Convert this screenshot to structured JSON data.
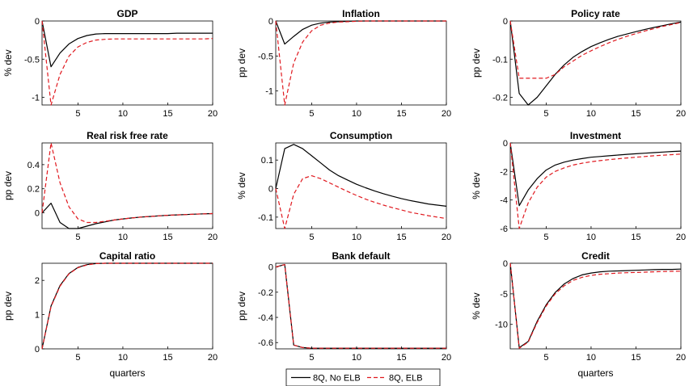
{
  "chart_data": [
    {
      "type": "line",
      "title": "GDP",
      "ylabel": "% dev",
      "xlabel": "",
      "xlim": [
        1,
        20
      ],
      "ylim": [
        -1.1,
        0
      ],
      "yticks": [
        0,
        -0.5,
        -1
      ],
      "ytick_labels": [
        "0",
        "-0.5",
        "-1"
      ],
      "xticks": [
        5,
        10,
        15,
        20
      ],
      "xtick_labels": [
        "5",
        "10",
        "15",
        "20"
      ],
      "x": [
        1,
        2,
        3,
        4,
        5,
        6,
        7,
        8,
        9,
        10,
        11,
        12,
        13,
        14,
        15,
        16,
        17,
        18,
        19,
        20
      ],
      "series": [
        {
          "values": [
            0,
            -0.6,
            -0.42,
            -0.3,
            -0.23,
            -0.19,
            -0.17,
            -0.165,
            -0.165,
            -0.165,
            -0.165,
            -0.165,
            -0.165,
            -0.165,
            -0.165,
            -0.16,
            -0.16,
            -0.16,
            -0.16,
            -0.16
          ],
          "color": "#000000",
          "dash": "solid"
        },
        {
          "values": [
            0,
            -1.15,
            -0.7,
            -0.46,
            -0.34,
            -0.28,
            -0.25,
            -0.24,
            -0.235,
            -0.235,
            -0.235,
            -0.235,
            -0.235,
            -0.235,
            -0.235,
            -0.235,
            -0.235,
            -0.235,
            -0.235,
            -0.23
          ],
          "color": "#e0191f",
          "dash": "dashed"
        }
      ]
    },
    {
      "type": "line",
      "title": "Inflation",
      "ylabel": "pp dev",
      "xlabel": "",
      "xlim": [
        1,
        20
      ],
      "ylim": [
        -1.2,
        0
      ],
      "yticks": [
        0,
        -0.5,
        -1
      ],
      "ytick_labels": [
        "0",
        "-0.5",
        "-1"
      ],
      "xticks": [
        5,
        10,
        15,
        20
      ],
      "xtick_labels": [
        "5",
        "10",
        "15",
        "20"
      ],
      "x": [
        1,
        2,
        3,
        4,
        5,
        6,
        7,
        8,
        9,
        10,
        11,
        12,
        13,
        14,
        15,
        16,
        17,
        18,
        19,
        20
      ],
      "series": [
        {
          "values": [
            0,
            -0.33,
            -0.22,
            -0.12,
            -0.06,
            -0.03,
            -0.015,
            -0.01,
            -0.005,
            0,
            0,
            0,
            0,
            0,
            0,
            0,
            0,
            0,
            0,
            0
          ],
          "color": "#000000",
          "dash": "solid"
        },
        {
          "values": [
            0,
            -1.22,
            -0.6,
            -0.3,
            -0.14,
            -0.06,
            -0.03,
            -0.015,
            -0.01,
            -0.005,
            0,
            0,
            0,
            0,
            0,
            0,
            0,
            0,
            0,
            0
          ],
          "color": "#e0191f",
          "dash": "dashed"
        }
      ]
    },
    {
      "type": "line",
      "title": "Policy rate",
      "ylabel": "pp dev",
      "xlabel": "",
      "xlim": [
        1,
        20
      ],
      "ylim": [
        -0.22,
        0
      ],
      "yticks": [
        0,
        -0.1,
        -0.2
      ],
      "ytick_labels": [
        "0",
        "-0.1",
        "-0.2"
      ],
      "xticks": [
        5,
        10,
        15,
        20
      ],
      "xtick_labels": [
        "5",
        "10",
        "15",
        "20"
      ],
      "x": [
        1,
        2,
        3,
        4,
        5,
        6,
        7,
        8,
        9,
        10,
        11,
        12,
        13,
        14,
        15,
        16,
        17,
        18,
        19,
        20
      ],
      "series": [
        {
          "values": [
            0,
            -0.19,
            -0.22,
            -0.2,
            -0.17,
            -0.14,
            -0.115,
            -0.095,
            -0.08,
            -0.067,
            -0.057,
            -0.048,
            -0.04,
            -0.034,
            -0.028,
            -0.022,
            -0.017,
            -0.012,
            -0.007,
            -0.003
          ],
          "color": "#000000",
          "dash": "solid"
        },
        {
          "values": [
            0,
            -0.15,
            -0.15,
            -0.15,
            -0.15,
            -0.14,
            -0.12,
            -0.105,
            -0.09,
            -0.078,
            -0.067,
            -0.057,
            -0.048,
            -0.04,
            -0.033,
            -0.026,
            -0.02,
            -0.014,
            -0.009,
            -0.004
          ],
          "color": "#e0191f",
          "dash": "dashed"
        }
      ]
    },
    {
      "type": "line",
      "title": "Real risk free rate",
      "ylabel": "pp dev",
      "xlabel": "",
      "xlim": [
        1,
        20
      ],
      "ylim": [
        -0.13,
        0.58
      ],
      "yticks": [
        0.4,
        0.2,
        0
      ],
      "ytick_labels": [
        "0.4",
        "0.2",
        "0"
      ],
      "xticks": [
        5,
        10,
        15,
        20
      ],
      "xtick_labels": [
        "5",
        "10",
        "15",
        "20"
      ],
      "x": [
        1,
        2,
        3,
        4,
        5,
        6,
        7,
        8,
        9,
        10,
        11,
        12,
        13,
        14,
        15,
        16,
        17,
        18,
        19,
        20
      ],
      "series": [
        {
          "values": [
            0,
            0.08,
            -0.08,
            -0.13,
            -0.13,
            -0.11,
            -0.09,
            -0.075,
            -0.06,
            -0.05,
            -0.042,
            -0.035,
            -0.03,
            -0.025,
            -0.02,
            -0.017,
            -0.014,
            -0.011,
            -0.008,
            -0.006
          ],
          "color": "#000000",
          "dash": "solid"
        },
        {
          "values": [
            0,
            0.58,
            0.25,
            0.05,
            -0.05,
            -0.08,
            -0.08,
            -0.07,
            -0.06,
            -0.05,
            -0.042,
            -0.035,
            -0.03,
            -0.025,
            -0.02,
            -0.017,
            -0.014,
            -0.011,
            -0.008,
            -0.006
          ],
          "color": "#e0191f",
          "dash": "dashed"
        }
      ]
    },
    {
      "type": "line",
      "title": "Consumption",
      "ylabel": "% dev",
      "xlabel": "",
      "xlim": [
        1,
        20
      ],
      "ylim": [
        -0.14,
        0.16
      ],
      "yticks": [
        0.1,
        0,
        -0.1
      ],
      "ytick_labels": [
        "0.1",
        "0",
        "-0.1"
      ],
      "xticks": [
        5,
        10,
        15,
        20
      ],
      "xtick_labels": [
        "5",
        "10",
        "15",
        "20"
      ],
      "x": [
        1,
        2,
        3,
        4,
        5,
        6,
        7,
        8,
        9,
        10,
        11,
        12,
        13,
        14,
        15,
        16,
        17,
        18,
        19,
        20
      ],
      "series": [
        {
          "values": [
            0,
            0.14,
            0.155,
            0.14,
            0.115,
            0.09,
            0.065,
            0.045,
            0.03,
            0.015,
            0.003,
            -0.008,
            -0.018,
            -0.027,
            -0.035,
            -0.042,
            -0.048,
            -0.054,
            -0.058,
            -0.062
          ],
          "color": "#000000",
          "dash": "solid"
        },
        {
          "values": [
            0,
            -0.14,
            -0.02,
            0.035,
            0.045,
            0.035,
            0.02,
            0.005,
            -0.01,
            -0.024,
            -0.037,
            -0.048,
            -0.058,
            -0.067,
            -0.075,
            -0.083,
            -0.089,
            -0.095,
            -0.1,
            -0.105
          ],
          "color": "#e0191f",
          "dash": "dashed"
        }
      ]
    },
    {
      "type": "line",
      "title": "Investment",
      "ylabel": "% dev",
      "xlabel": "",
      "xlim": [
        1,
        20
      ],
      "ylim": [
        -6,
        0
      ],
      "yticks": [
        0,
        -2,
        -4,
        -6
      ],
      "ytick_labels": [
        "0",
        "-2",
        "-4",
        "-6"
      ],
      "xticks": [
        5,
        10,
        15,
        20
      ],
      "xtick_labels": [
        "5",
        "10",
        "15",
        "20"
      ],
      "x": [
        1,
        2,
        3,
        4,
        5,
        6,
        7,
        8,
        9,
        10,
        11,
        12,
        13,
        14,
        15,
        16,
        17,
        18,
        19,
        20
      ],
      "series": [
        {
          "values": [
            0,
            -4.4,
            -3.3,
            -2.5,
            -1.9,
            -1.55,
            -1.35,
            -1.2,
            -1.1,
            -1.0,
            -0.95,
            -0.9,
            -0.85,
            -0.8,
            -0.76,
            -0.72,
            -0.68,
            -0.64,
            -0.6,
            -0.57
          ],
          "color": "#000000",
          "dash": "solid"
        },
        {
          "values": [
            0,
            -6.2,
            -4.2,
            -3.1,
            -2.4,
            -2.0,
            -1.75,
            -1.55,
            -1.42,
            -1.32,
            -1.24,
            -1.17,
            -1.11,
            -1.05,
            -1.0,
            -0.95,
            -0.9,
            -0.86,
            -0.82,
            -0.78
          ],
          "color": "#e0191f",
          "dash": "dashed"
        }
      ]
    },
    {
      "type": "line",
      "title": "Capital ratio",
      "ylabel": "pp dev",
      "xlabel": "quarters",
      "xlim": [
        1,
        20
      ],
      "ylim": [
        0,
        2.5
      ],
      "yticks": [
        2,
        1,
        0
      ],
      "ytick_labels": [
        "2",
        "1",
        "0"
      ],
      "xticks": [
        5,
        10,
        15,
        20
      ],
      "xtick_labels": [
        "5",
        "10",
        "15",
        "20"
      ],
      "x": [
        1,
        2,
        3,
        4,
        5,
        6,
        7,
        8,
        9,
        10,
        11,
        12,
        13,
        14,
        15,
        16,
        17,
        18,
        19,
        20
      ],
      "series": [
        {
          "values": [
            0,
            1.25,
            1.85,
            2.2,
            2.38,
            2.46,
            2.49,
            2.5,
            2.5,
            2.5,
            2.5,
            2.5,
            2.5,
            2.5,
            2.5,
            2.5,
            2.5,
            2.5,
            2.5,
            2.5
          ],
          "color": "#000000",
          "dash": "solid"
        },
        {
          "values": [
            0,
            1.23,
            1.83,
            2.19,
            2.37,
            2.45,
            2.49,
            2.5,
            2.5,
            2.5,
            2.5,
            2.5,
            2.5,
            2.5,
            2.5,
            2.5,
            2.5,
            2.5,
            2.5,
            2.5
          ],
          "color": "#e0191f",
          "dash": "dashed"
        }
      ]
    },
    {
      "type": "line",
      "title": "Bank default",
      "ylabel": "pp dev",
      "xlabel": "",
      "xlim": [
        1,
        20
      ],
      "ylim": [
        -0.65,
        0.03
      ],
      "yticks": [
        0,
        -0.2,
        -0.4,
        -0.6
      ],
      "ytick_labels": [
        "0",
        "-0.2",
        "-0.4",
        "-0.6"
      ],
      "xticks": [
        5,
        10,
        15,
        20
      ],
      "xtick_labels": [
        "5",
        "10",
        "15",
        "20"
      ],
      "x": [
        1,
        2,
        3,
        4,
        5,
        6,
        7,
        8,
        9,
        10,
        11,
        12,
        13,
        14,
        15,
        16,
        17,
        18,
        19,
        20
      ],
      "series": [
        {
          "values": [
            0,
            0.02,
            -0.62,
            -0.64,
            -0.645,
            -0.645,
            -0.645,
            -0.645,
            -0.645,
            -0.645,
            -0.645,
            -0.645,
            -0.645,
            -0.645,
            -0.645,
            -0.645,
            -0.645,
            -0.645,
            -0.645,
            -0.645
          ],
          "color": "#000000",
          "dash": "solid"
        },
        {
          "values": [
            0,
            0.02,
            -0.62,
            -0.64,
            -0.645,
            -0.645,
            -0.645,
            -0.645,
            -0.645,
            -0.645,
            -0.645,
            -0.645,
            -0.645,
            -0.645,
            -0.645,
            -0.645,
            -0.645,
            -0.645,
            -0.645,
            -0.645
          ],
          "color": "#e0191f",
          "dash": "dashed"
        }
      ]
    },
    {
      "type": "line",
      "title": "Credit",
      "ylabel": "% dev",
      "xlabel": "quarters",
      "xlim": [
        1,
        20
      ],
      "ylim": [
        -14,
        0
      ],
      "yticks": [
        0,
        -5,
        -10
      ],
      "ytick_labels": [
        "0",
        "-5",
        "-10"
      ],
      "xticks": [
        5,
        10,
        15,
        20
      ],
      "xtick_labels": [
        "5",
        "10",
        "15",
        "20"
      ],
      "x": [
        1,
        2,
        3,
        4,
        5,
        6,
        7,
        8,
        9,
        10,
        11,
        12,
        13,
        14,
        15,
        16,
        17,
        18,
        19,
        20
      ],
      "series": [
        {
          "values": [
            0,
            -13.8,
            -12.8,
            -9.5,
            -6.8,
            -4.8,
            -3.4,
            -2.5,
            -1.9,
            -1.6,
            -1.4,
            -1.3,
            -1.25,
            -1.2,
            -1.15,
            -1.1,
            -1.05,
            -1.0,
            -1.0,
            -0.95
          ],
          "color": "#000000",
          "dash": "solid"
        },
        {
          "values": [
            0,
            -13.9,
            -12.9,
            -9.7,
            -7.0,
            -5.0,
            -3.7,
            -2.8,
            -2.3,
            -2.0,
            -1.8,
            -1.7,
            -1.6,
            -1.55,
            -1.5,
            -1.45,
            -1.4,
            -1.35,
            -1.32,
            -1.3
          ],
          "color": "#e0191f",
          "dash": "dashed"
        }
      ]
    }
  ],
  "legend": {
    "placement": "bottom-center",
    "entries": [
      {
        "label": "8Q, No ELB",
        "color": "#000000",
        "dash": "solid"
      },
      {
        "label": "8Q, ELB",
        "color": "#e0191f",
        "dash": "dashed"
      }
    ]
  }
}
